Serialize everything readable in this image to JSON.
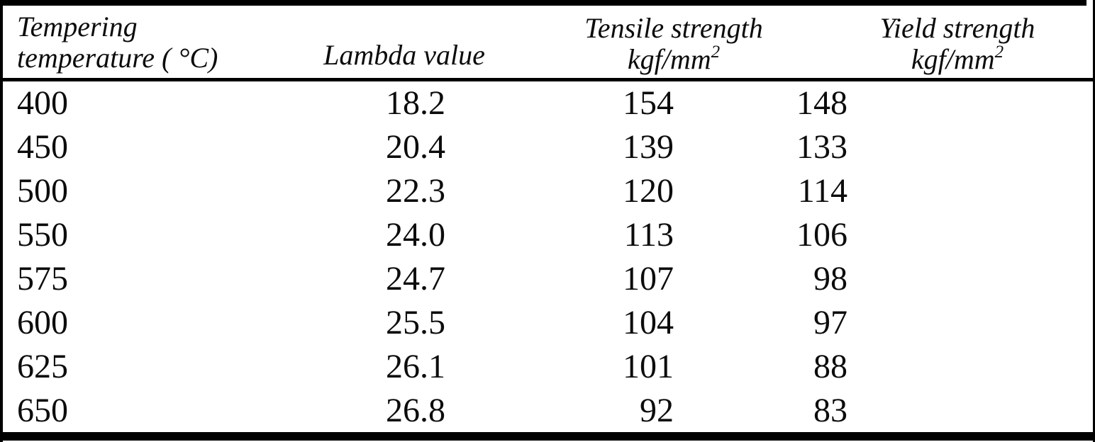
{
  "table": {
    "columns": [
      {
        "label_line1": "Tempering",
        "label_line2": "temperature ( °C)"
      },
      {
        "label": "Lambda value"
      },
      {
        "label": "Tensile strength",
        "unit": "kgf/mm",
        "unit_exp": "2"
      },
      {
        "label": "Yield strength",
        "unit": "kgf/mm",
        "unit_exp": "2"
      }
    ],
    "rows": [
      {
        "temp": "400",
        "lambda": "18.2",
        "tensile": "154",
        "yield": "148"
      },
      {
        "temp": "450",
        "lambda": "20.4",
        "tensile": "139",
        "yield": "133"
      },
      {
        "temp": "500",
        "lambda": "22.3",
        "tensile": "120",
        "yield": "114"
      },
      {
        "temp": "550",
        "lambda": "24.0",
        "tensile": "113",
        "yield": "106"
      },
      {
        "temp": "575",
        "lambda": "24.7",
        "tensile": "107",
        "yield": "98"
      },
      {
        "temp": "600",
        "lambda": "25.5",
        "tensile": "104",
        "yield": "97"
      },
      {
        "temp": "625",
        "lambda": "26.1",
        "tensile": "101",
        "yield": "88"
      },
      {
        "temp": "650",
        "lambda": "26.8",
        "tensile": "92",
        "yield": "83"
      }
    ],
    "colors": {
      "background": "#ffffff",
      "text": "#0c0c0c",
      "rule": "#000000"
    }
  }
}
